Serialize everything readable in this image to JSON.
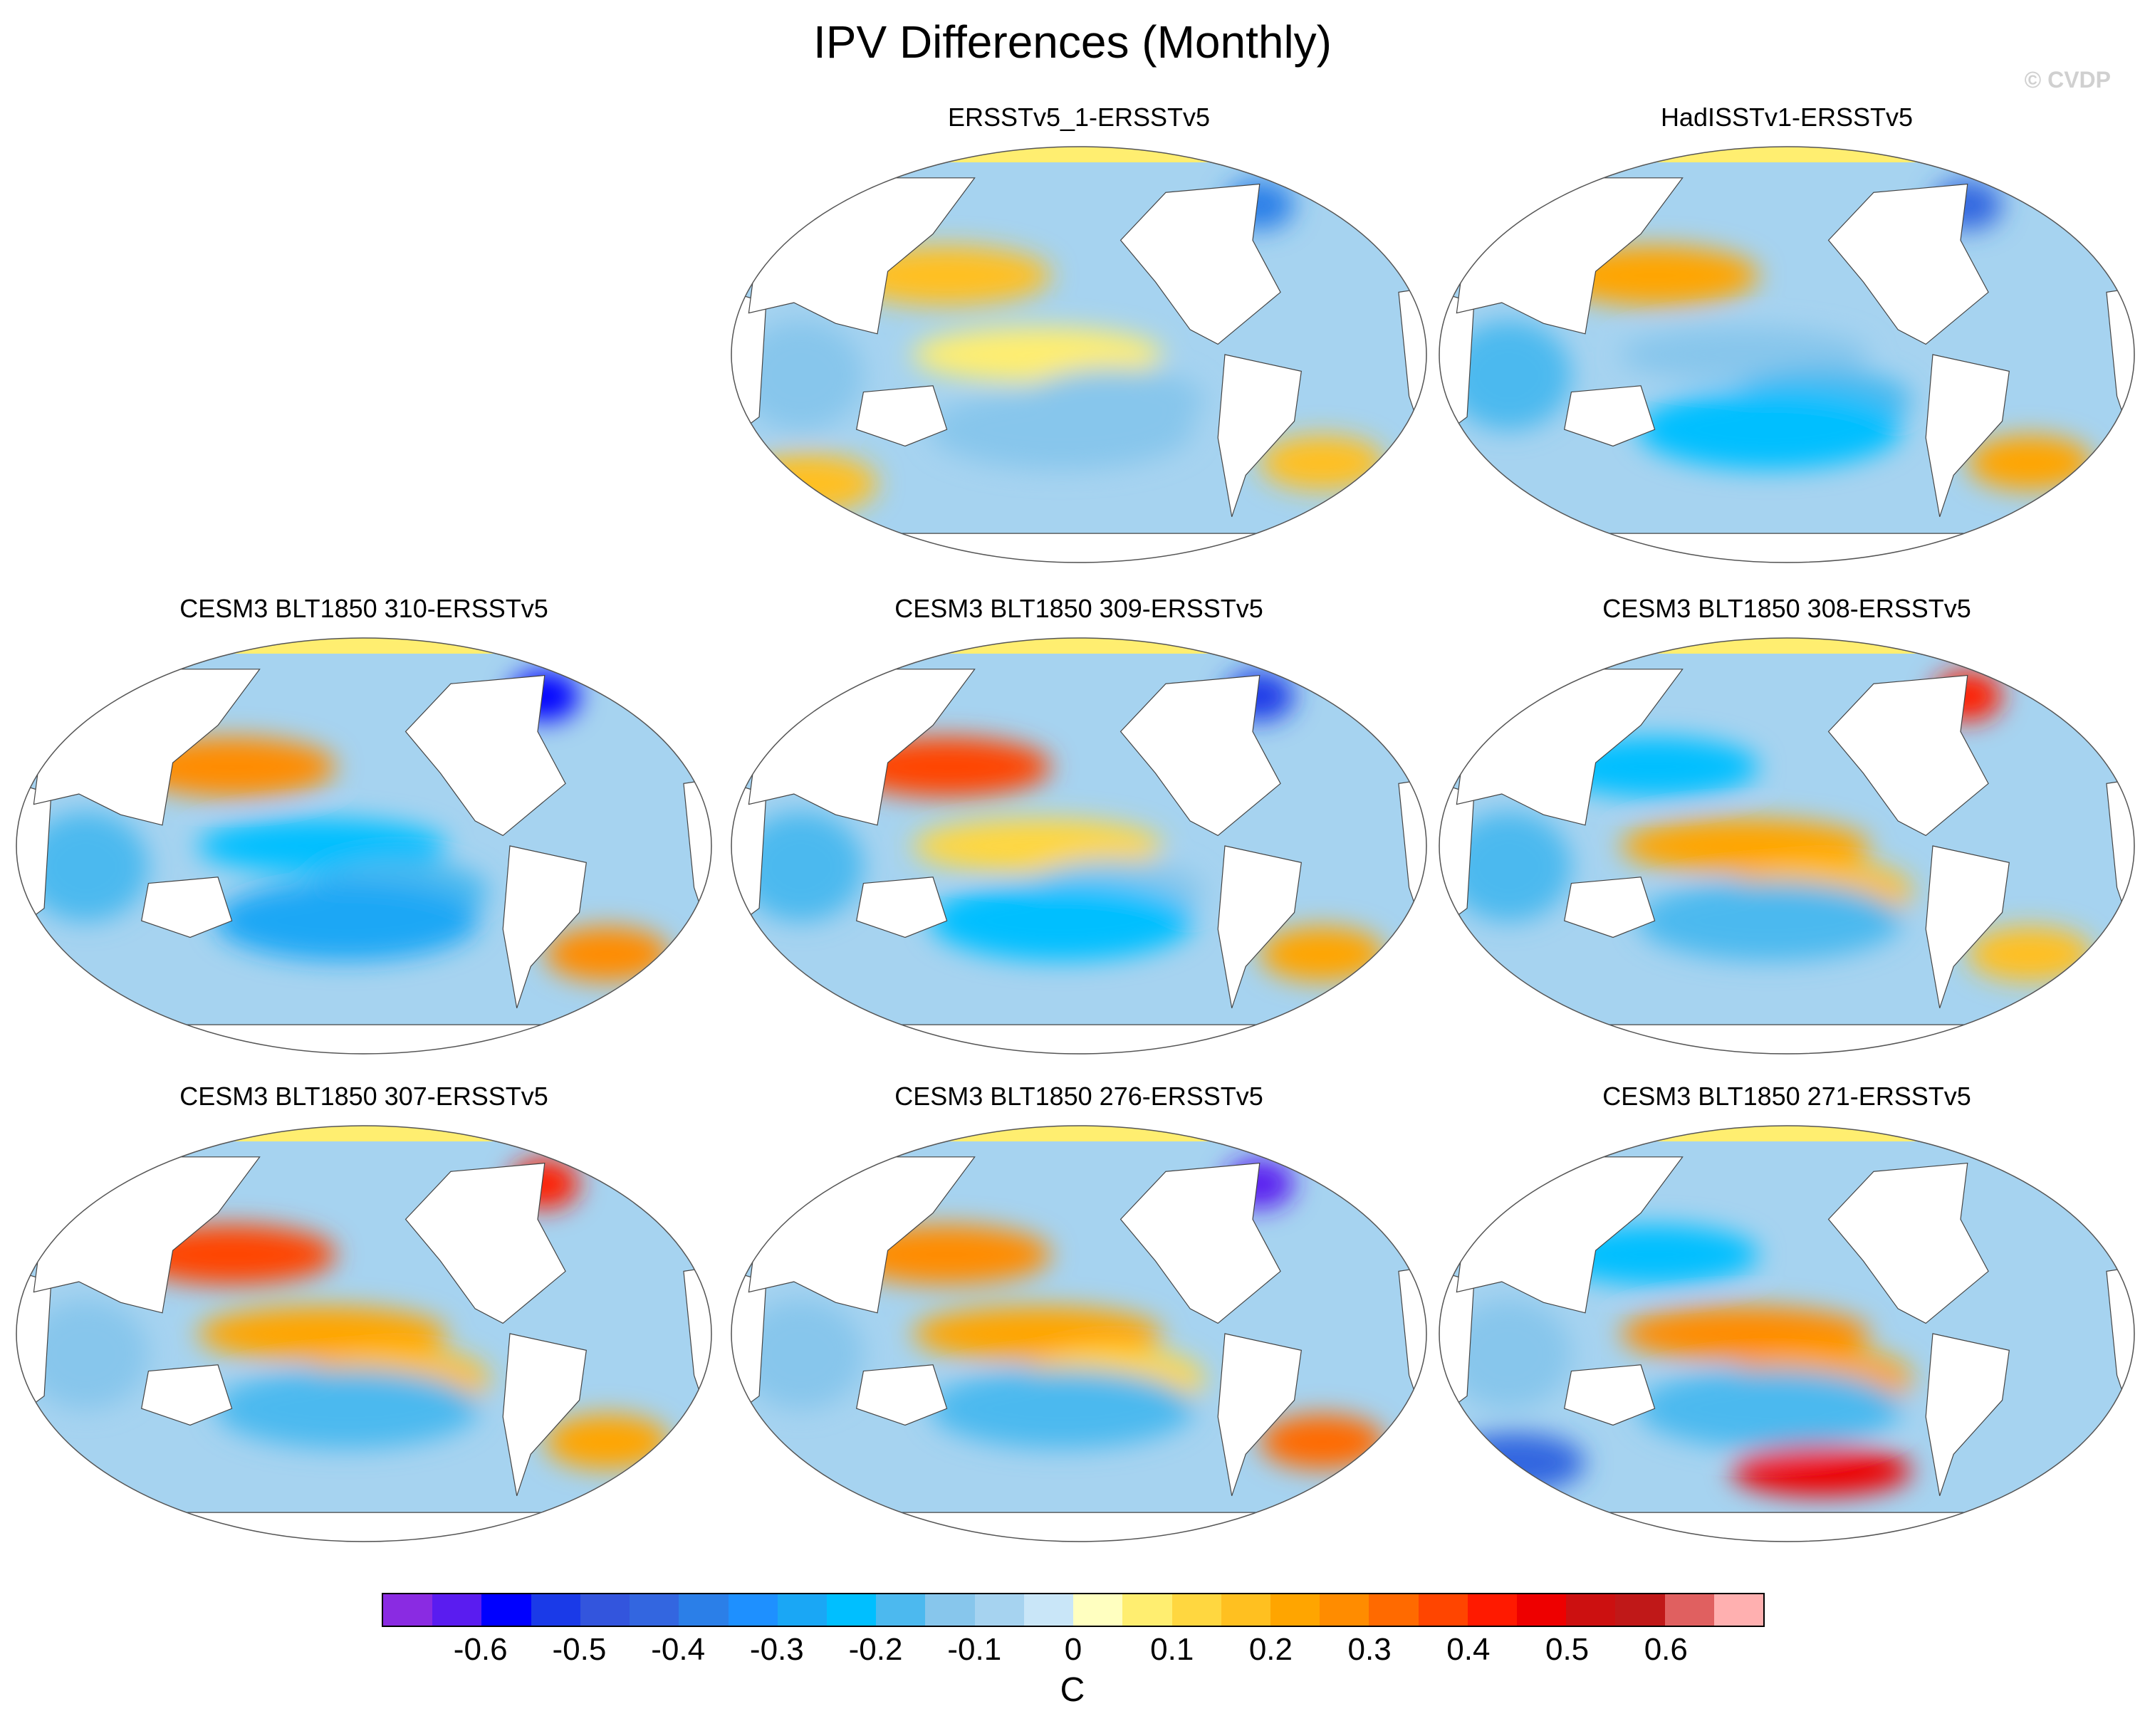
{
  "title": "IPV Differences (Monthly)",
  "watermark": "© CVDP",
  "panels": [
    {
      "title": "ERSSTv5_1-ERSSTv5",
      "position": "top-middle"
    },
    {
      "title": "HadISSTv1-ERSSTv5",
      "position": "top-right"
    },
    {
      "title": "CESM3 BLT1850 310-ERSSTv5",
      "position": "middle-left"
    },
    {
      "title": "CESM3 BLT1850 309-ERSSTv5",
      "position": "middle-center"
    },
    {
      "title": "CESM3 BLT1850 308-ERSSTv5",
      "position": "middle-right"
    },
    {
      "title": "CESM3 BLT1850 307-ERSSTv5",
      "position": "bottom-left"
    },
    {
      "title": "CESM3 BLT1850 276-ERSSTv5",
      "position": "bottom-center"
    },
    {
      "title": "CESM3 BLT1850 271-ERSSTv5",
      "position": "bottom-right"
    }
  ],
  "colorbar": {
    "units": "C",
    "labels": [
      "-0.6",
      "-0.5",
      "-0.4",
      "-0.3",
      "-0.2",
      "-0.1",
      "0",
      "0.1",
      "0.2",
      "0.3",
      "0.4",
      "0.5",
      "0.6"
    ],
    "colors": [
      "#8a2be2",
      "#5a1cf0",
      "#0000ff",
      "#1a3ae8",
      "#3355dd",
      "#3366e0",
      "#2b7fe8",
      "#1e90ff",
      "#1aa7f5",
      "#00bfff",
      "#4cb9ef",
      "#87c6ec",
      "#a6d3f0",
      "#c9e6f8",
      "#ffffc0",
      "#ffee70",
      "#ffd740",
      "#ffc020",
      "#ffa500",
      "#ff8c00",
      "#ff6a00",
      "#ff4500",
      "#ff1a00",
      "#ee0000",
      "#cc1010",
      "#c01818",
      "#e06060",
      "#ffb0b0"
    ]
  },
  "chart_data": {
    "type": "heatmap",
    "title": "IPV Differences (Monthly)",
    "units": "C",
    "projection": "Robinson (Pacific-centered global map)",
    "color_range": [
      -0.65,
      0.65
    ],
    "panels": [
      {
        "name": "ERSSTv5_1-ERSSTv5",
        "features": [
          {
            "region": "North Pacific (Kuroshio extension)",
            "value": 0.15
          },
          {
            "region": "Central tropical Pacific",
            "value": 0.05
          },
          {
            "region": "Eastern tropical Pacific",
            "value": -0.1
          },
          {
            "region": "Indian Ocean",
            "value": -0.1
          },
          {
            "region": "South Pacific",
            "value": -0.1
          },
          {
            "region": "South Atlantic",
            "value": 0.15
          },
          {
            "region": "Southern Ocean (Indian sector)",
            "value": 0.15
          },
          {
            "region": "North Atlantic (Labrador Sea)",
            "value": -0.35
          }
        ]
      },
      {
        "name": "HadISSTv1-ERSSTv5",
        "features": [
          {
            "region": "North Pacific (Kuroshio extension)",
            "value": 0.2
          },
          {
            "region": "Central tropical Pacific",
            "value": -0.1
          },
          {
            "region": "Eastern tropical Pacific",
            "value": -0.15
          },
          {
            "region": "Indian Ocean",
            "value": -0.15
          },
          {
            "region": "South Pacific",
            "value": -0.2
          },
          {
            "region": "South Atlantic",
            "value": 0.2
          },
          {
            "region": "North Atlantic (Labrador Sea)",
            "value": -0.4
          }
        ]
      },
      {
        "name": "CESM3 BLT1850 310-ERSSTv5",
        "features": [
          {
            "region": "North Pacific (Kuroshio extension)",
            "value": 0.25
          },
          {
            "region": "Central tropical Pacific",
            "value": -0.2
          },
          {
            "region": "Eastern tropical Pacific",
            "value": -0.15
          },
          {
            "region": "Indian Ocean",
            "value": -0.15
          },
          {
            "region": "South Pacific",
            "value": -0.25
          },
          {
            "region": "South Atlantic",
            "value": 0.25
          },
          {
            "region": "North Atlantic (Labrador Sea)",
            "value": -0.55
          }
        ]
      },
      {
        "name": "CESM3 BLT1850 309-ERSSTv5",
        "features": [
          {
            "region": "North Pacific (Kuroshio extension)",
            "value": 0.35
          },
          {
            "region": "Central tropical Pacific",
            "value": 0.1
          },
          {
            "region": "Eastern tropical Pacific",
            "value": -0.1
          },
          {
            "region": "Indian Ocean",
            "value": -0.15
          },
          {
            "region": "South Pacific",
            "value": -0.2
          },
          {
            "region": "South Atlantic",
            "value": 0.2
          },
          {
            "region": "North Atlantic (Labrador Sea)",
            "value": -0.5
          }
        ]
      },
      {
        "name": "CESM3 BLT1850 308-ERSSTv5",
        "features": [
          {
            "region": "North Pacific (Kuroshio extension)",
            "value": -0.2
          },
          {
            "region": "Central tropical Pacific",
            "value": 0.2
          },
          {
            "region": "Eastern tropical Pacific",
            "value": 0.15
          },
          {
            "region": "Indian Ocean",
            "value": -0.15
          },
          {
            "region": "South Pacific",
            "value": -0.15
          },
          {
            "region": "South Atlantic",
            "value": 0.15
          },
          {
            "region": "North Atlantic (Labrador Sea)",
            "value": 0.4
          }
        ]
      },
      {
        "name": "CESM3 BLT1850 307-ERSSTv5",
        "features": [
          {
            "region": "North Pacific (Kuroshio extension)",
            "value": 0.35
          },
          {
            "region": "Central tropical Pacific",
            "value": 0.2
          },
          {
            "region": "Eastern tropical Pacific",
            "value": 0.15
          },
          {
            "region": "Indian Ocean",
            "value": -0.1
          },
          {
            "region": "South Pacific",
            "value": -0.15
          },
          {
            "region": "South Atlantic",
            "value": 0.2
          },
          {
            "region": "North Atlantic (Labrador Sea)",
            "value": 0.4
          }
        ]
      },
      {
        "name": "CESM3 BLT1850 276-ERSSTv5",
        "features": [
          {
            "region": "North Pacific (Kuroshio extension)",
            "value": 0.25
          },
          {
            "region": "Central tropical Pacific",
            "value": 0.2
          },
          {
            "region": "Eastern tropical Pacific",
            "value": 0.1
          },
          {
            "region": "Indian Ocean",
            "value": -0.1
          },
          {
            "region": "South Pacific",
            "value": -0.15
          },
          {
            "region": "South Atlantic",
            "value": 0.3
          },
          {
            "region": "North Atlantic (Labrador Sea)",
            "value": -0.6
          }
        ]
      },
      {
        "name": "CESM3 BLT1850 271-ERSSTv5",
        "features": [
          {
            "region": "North Pacific (Kuroshio extension)",
            "value": -0.2
          },
          {
            "region": "Central tropical Pacific",
            "value": 0.25
          },
          {
            "region": "Eastern tropical Pacific",
            "value": 0.2
          },
          {
            "region": "Indian Ocean",
            "value": -0.1
          },
          {
            "region": "South Pacific",
            "value": -0.15
          },
          {
            "region": "Southern Ocean (Pacific sector)",
            "value": 0.45
          },
          {
            "region": "Southern Ocean (Indian sector)",
            "value": -0.4
          }
        ]
      }
    ]
  }
}
